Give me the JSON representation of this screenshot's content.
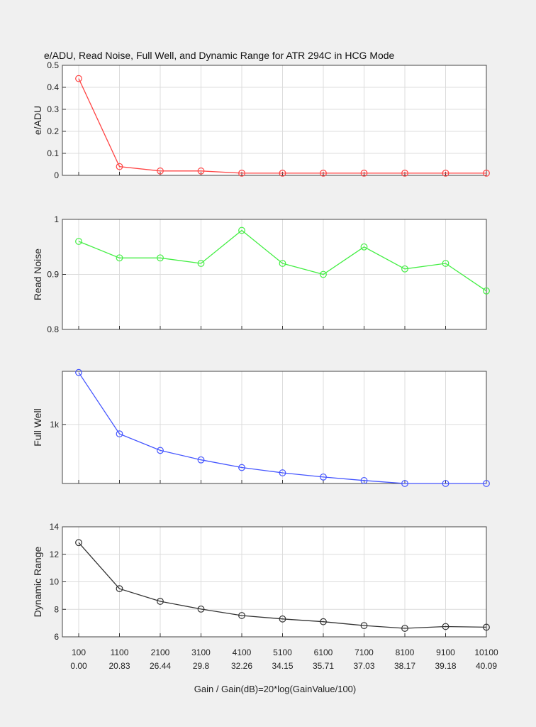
{
  "figure": {
    "title": "e/ADU, Read Noise, Full Well, and Dynamic Range for  ATR 294C  in HCG Mode",
    "xlabel": "Gain / Gain(dB)=20*log(GainValue/100)",
    "gain_ticks": [
      "100",
      "1100",
      "2100",
      "3100",
      "4100",
      "5100",
      "6100",
      "7100",
      "8100",
      "9100",
      "10100"
    ],
    "db_ticks": [
      "0.00",
      "20.83",
      "26.44",
      "29.8",
      "32.26",
      "34.15",
      "35.71",
      "37.03",
      "38.17",
      "39.18",
      "40.09"
    ]
  },
  "chart_data": [
    {
      "type": "line",
      "ylabel": "e/ADU",
      "color": "#ff4444",
      "ylim": [
        0,
        0.5
      ],
      "yticks": [
        0,
        0.1,
        0.2,
        0.3,
        0.4,
        0.5
      ],
      "ytick_labels": [
        "0",
        "0.1",
        "0.2",
        "0.3",
        "0.4",
        "0.5"
      ],
      "x": [
        100,
        1100,
        2100,
        3100,
        4100,
        5100,
        6100,
        7100,
        8100,
        9100,
        10100
      ],
      "values": [
        0.44,
        0.04,
        0.02,
        0.02,
        0.01,
        0.01,
        0.01,
        0.01,
        0.01,
        0.01,
        0.01
      ]
    },
    {
      "type": "line",
      "ylabel": "Read Noise",
      "color": "#44ee44",
      "ylim": [
        0.8,
        1.0
      ],
      "yticks": [
        0.8,
        0.9,
        1.0
      ],
      "ytick_labels": [
        "0.8",
        "0.9",
        "1"
      ],
      "x": [
        100,
        1100,
        2100,
        3100,
        4100,
        5100,
        6100,
        7100,
        8100,
        9100,
        10100
      ],
      "values": [
        0.96,
        0.93,
        0.93,
        0.92,
        0.98,
        0.92,
        0.9,
        0.95,
        0.91,
        0.92,
        0.87
      ]
    },
    {
      "type": "line",
      "ylabel": "Full Well",
      "color": "#4455ff",
      "ylim": [
        0,
        1900
      ],
      "yticks": [
        1000
      ],
      "ytick_labels": [
        "1k"
      ],
      "x": [
        100,
        1100,
        2100,
        3100,
        4100,
        5100,
        6100,
        7100,
        8100,
        9100,
        10100
      ],
      "values": [
        1880,
        840,
        560,
        400,
        270,
        180,
        110,
        50,
        0,
        0,
        0
      ]
    },
    {
      "type": "line",
      "ylabel": "Dynamic Range",
      "color": "#333333",
      "ylim": [
        6,
        14
      ],
      "yticks": [
        6,
        8,
        10,
        12,
        14
      ],
      "ytick_labels": [
        "6",
        "8",
        "10",
        "12",
        "14"
      ],
      "x": [
        100,
        1100,
        2100,
        3100,
        4100,
        5100,
        6100,
        7100,
        8100,
        9100,
        10100
      ],
      "values": [
        12.85,
        9.5,
        8.58,
        8.02,
        7.55,
        7.3,
        7.1,
        6.82,
        6.62,
        6.75,
        6.7
      ]
    }
  ]
}
